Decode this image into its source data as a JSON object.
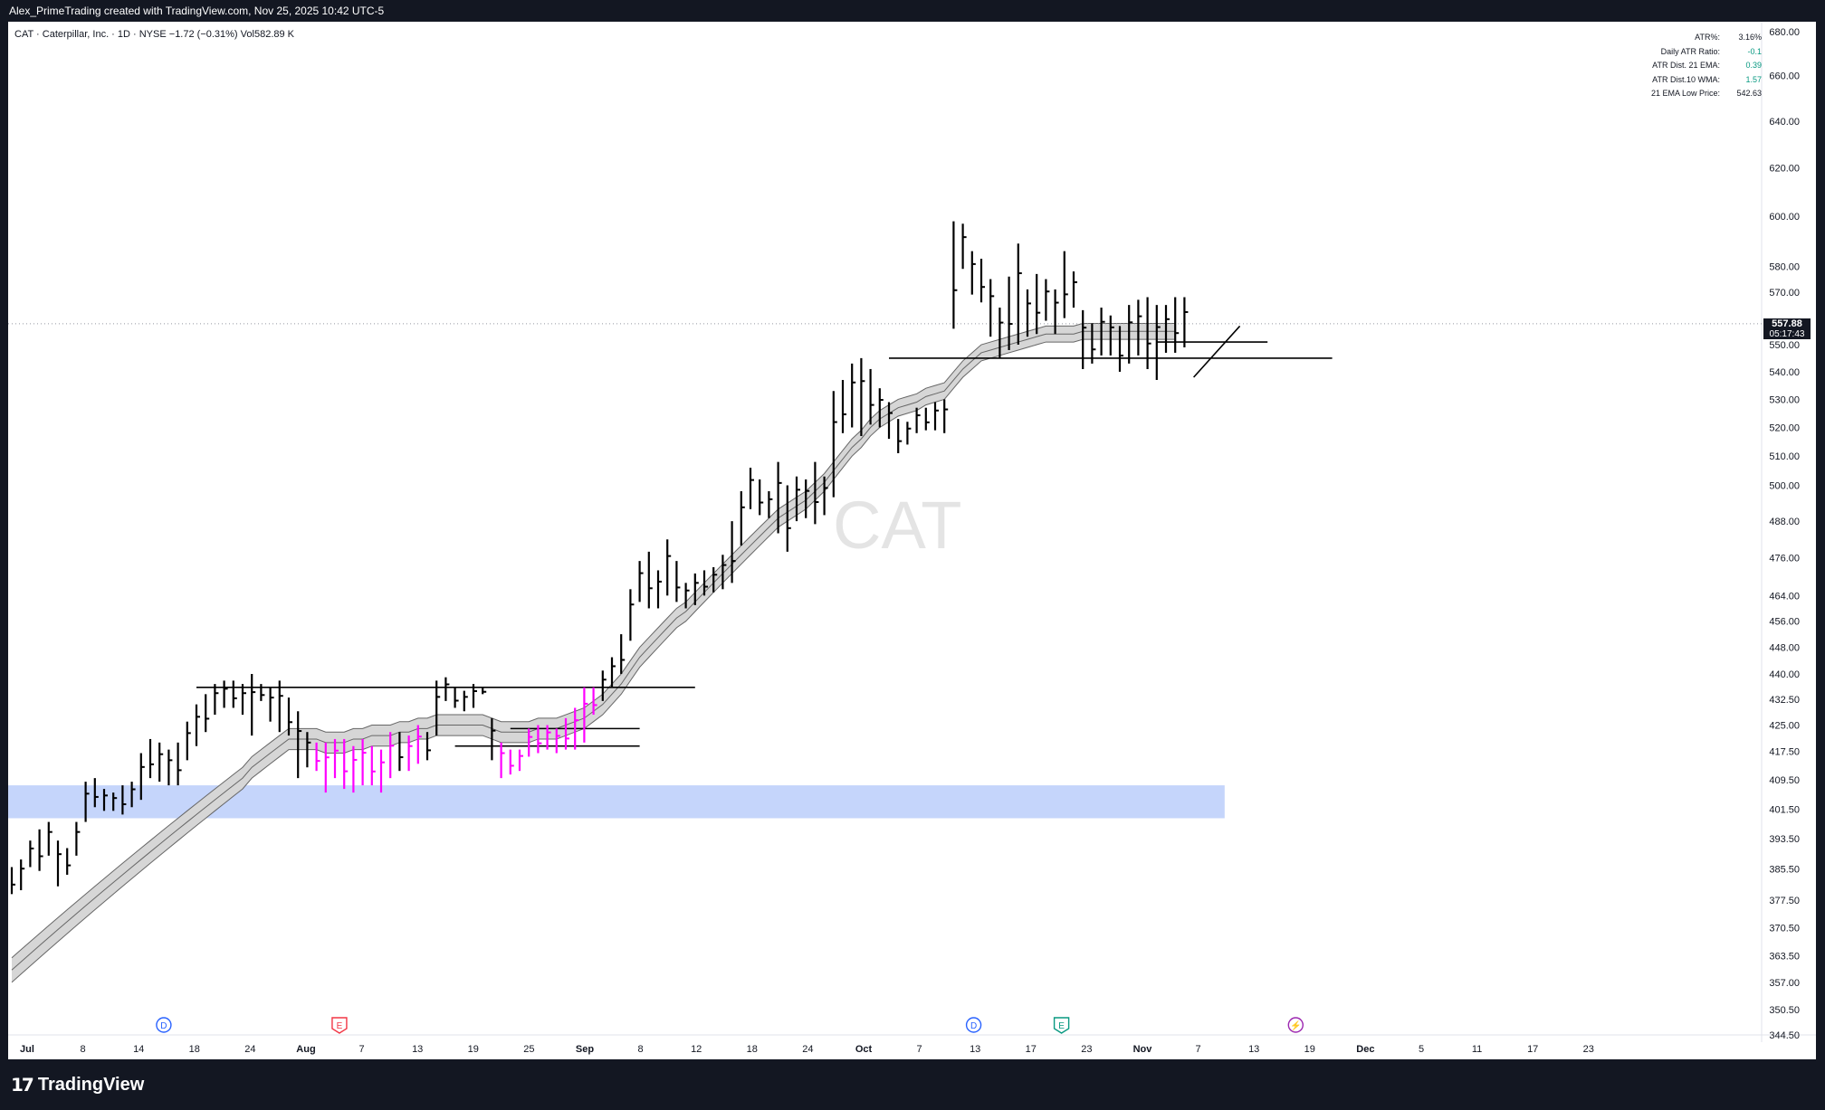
{
  "header": {
    "credit": "Alex_PrimeTrading created with TradingView.com, Nov 25, 2025 10:42 UTC-5"
  },
  "legend": {
    "symbol_line": "CAT · Caterpillar, Inc. · 1D · NYSE",
    "change": "−1.72 (−0.31%)",
    "volume": "Vol582.89 K"
  },
  "watermark": "CAT",
  "indicator_table": [
    {
      "label": "ATR%:",
      "value": "3.16%"
    },
    {
      "label": "Daily ATR Ratio:",
      "value": "-0.1"
    },
    {
      "label": "ATR Dist. 21 EMA:",
      "value": "0.39"
    },
    {
      "label": "ATR Dist.10 WMA:",
      "value": "1.57"
    },
    {
      "label": "21 EMA Low Price:",
      "value": "542.63"
    }
  ],
  "price_tag": {
    "price": "557.88",
    "countdown": "05:17:43"
  },
  "footer": {
    "brand": "TradingView"
  },
  "colors": {
    "bar": "#000000",
    "highlight_bar": "#ff00ff",
    "band_fill": "#d6d6d6",
    "band_edge": "#666666",
    "zone_fill": "#c5d5fb",
    "dividend_marker": "#2962ff",
    "earnings_past_marker": "#f23645",
    "earnings_future_marker": "#089981",
    "split_marker": "#9c27b0",
    "positive_value": "#089981",
    "negative_value": "#f23645"
  },
  "chart_data": {
    "type": "ohlc-bar",
    "symbol": "CAT",
    "timeframe": "1D",
    "y_axis": {
      "scale": "log",
      "ylim": [
        344.5,
        680
      ],
      "tick_labels": [
        "680.00",
        "660.00",
        "640.00",
        "620.00",
        "600.00",
        "580.00",
        "570.00",
        "550.00",
        "540.00",
        "530.00",
        "520.00",
        "510.00",
        "500.00",
        "488.00",
        "476.00",
        "464.00",
        "456.00",
        "448.00",
        "440.00",
        "432.50",
        "425.00",
        "417.50",
        "409.50",
        "401.50",
        "393.50",
        "385.50",
        "377.50",
        "370.50",
        "363.50",
        "357.00",
        "350.50",
        "344.50"
      ]
    },
    "x_axis": {
      "tick_labels": [
        "Jul",
        "8",
        "14",
        "18",
        "24",
        "Aug",
        "7",
        "13",
        "19",
        "25",
        "Sep",
        "8",
        "12",
        "18",
        "24",
        "Oct",
        "7",
        "13",
        "17",
        "23",
        "Nov",
        "7",
        "13",
        "19",
        "Dec",
        "5",
        "11",
        "17",
        "23"
      ]
    },
    "last_price": 557.88,
    "bars": [
      [
        379,
        386
      ],
      [
        380,
        388
      ],
      [
        386,
        393
      ],
      [
        385,
        396
      ],
      [
        389,
        398
      ],
      [
        381,
        393
      ],
      [
        384,
        391
      ],
      [
        389,
        398
      ],
      [
        398,
        409
      ],
      [
        402,
        410
      ],
      [
        401,
        407
      ],
      [
        401,
        406
      ],
      [
        400,
        408
      ],
      [
        402,
        409
      ],
      [
        404,
        417
      ],
      [
        410,
        421
      ],
      [
        409,
        420
      ],
      [
        408,
        418
      ],
      [
        408,
        420
      ],
      [
        415,
        426
      ],
      [
        419,
        431
      ],
      [
        423,
        434
      ],
      [
        428,
        437
      ],
      [
        430,
        438
      ],
      [
        430,
        438
      ],
      [
        428,
        437
      ],
      [
        422,
        440
      ],
      [
        432,
        437
      ],
      [
        426,
        436
      ],
      [
        423,
        438
      ],
      [
        422,
        433
      ],
      [
        410,
        429
      ],
      [
        413,
        423
      ],
      [
        412,
        420
      ],
      [
        406,
        420
      ],
      [
        410,
        421
      ],
      [
        407,
        421
      ],
      [
        406,
        419
      ],
      [
        408,
        421
      ],
      [
        408,
        419
      ],
      [
        406,
        418
      ],
      [
        410,
        423
      ],
      [
        412,
        423
      ],
      [
        412,
        422
      ],
      [
        414,
        425
      ],
      [
        415,
        423
      ],
      [
        422,
        438
      ],
      [
        432,
        439
      ],
      [
        430,
        436
      ],
      [
        429,
        435
      ],
      [
        430,
        437
      ],
      [
        434,
        436
      ],
      [
        415,
        427
      ],
      [
        410,
        420
      ],
      [
        411,
        418
      ],
      [
        412,
        418
      ],
      [
        416,
        424
      ],
      [
        417,
        425
      ],
      [
        418,
        425
      ],
      [
        417,
        424
      ],
      [
        418,
        427
      ],
      [
        418,
        430
      ],
      [
        420,
        436
      ],
      [
        428,
        436
      ],
      [
        432,
        441
      ],
      [
        436,
        445
      ],
      [
        440,
        452
      ],
      [
        450,
        466
      ],
      [
        462,
        475
      ],
      [
        460,
        478
      ],
      [
        460,
        472
      ],
      [
        464,
        482
      ],
      [
        462,
        475
      ],
      [
        460,
        468
      ],
      [
        461,
        471
      ],
      [
        464,
        472
      ],
      [
        465,
        473
      ],
      [
        466,
        477
      ],
      [
        468,
        488
      ],
      [
        480,
        498
      ],
      [
        492,
        506
      ],
      [
        490,
        502
      ],
      [
        489,
        498
      ],
      [
        484,
        508
      ],
      [
        478,
        500
      ],
      [
        488,
        503
      ],
      [
        489,
        502
      ],
      [
        487,
        508
      ],
      [
        490,
        503
      ],
      [
        496,
        533
      ],
      [
        518,
        537
      ],
      [
        520,
        543
      ],
      [
        517,
        545
      ],
      [
        521,
        541
      ],
      [
        520,
        534
      ],
      [
        516,
        529
      ],
      [
        511,
        523
      ],
      [
        514,
        522
      ],
      [
        518,
        527
      ],
      [
        519,
        527
      ],
      [
        519,
        529
      ],
      [
        518,
        530
      ],
      [
        556,
        598
      ],
      [
        579,
        597
      ],
      [
        569,
        586
      ],
      [
        566,
        583
      ],
      [
        553,
        575
      ],
      [
        545,
        564
      ],
      [
        548,
        576
      ],
      [
        550,
        589
      ],
      [
        553,
        571
      ],
      [
        554,
        577
      ],
      [
        559,
        575
      ],
      [
        554,
        571
      ],
      [
        560,
        586
      ],
      [
        564,
        578
      ],
      [
        541,
        563
      ],
      [
        543,
        558
      ],
      [
        546,
        564
      ],
      [
        546,
        561
      ],
      [
        540,
        557
      ],
      [
        543,
        565
      ],
      [
        546,
        567
      ],
      [
        541,
        568
      ],
      [
        537,
        565
      ],
      [
        547,
        565
      ],
      [
        547,
        568
      ],
      [
        549,
        568
      ]
    ],
    "highlight_bar_ranges": [
      [
        33,
        41
      ],
      [
        43,
        44
      ],
      [
        53,
        63
      ]
    ],
    "band": {
      "upper": [
        363,
        365,
        367,
        369,
        371,
        373,
        375,
        377,
        379,
        381,
        383,
        385,
        387,
        389,
        391,
        393,
        395,
        397,
        399,
        401,
        403,
        405,
        407,
        409,
        411,
        413,
        416,
        418,
        420,
        422,
        424,
        424,
        424,
        424,
        423,
        423,
        423,
        424,
        424,
        425,
        425,
        425,
        426,
        426,
        427,
        427,
        428,
        428,
        428,
        428,
        428,
        428,
        427,
        426,
        426,
        426,
        426,
        427,
        427,
        427,
        428,
        429,
        430,
        432,
        434,
        437,
        440,
        444,
        448,
        451,
        454,
        457,
        460,
        462,
        465,
        468,
        471,
        474,
        477,
        480,
        483,
        486,
        489,
        492,
        494,
        496,
        498,
        501,
        504,
        508,
        512,
        516,
        519,
        523,
        526,
        528,
        530,
        531,
        532,
        534,
        535,
        536,
        540,
        544,
        547,
        550,
        551,
        552,
        553,
        554,
        555,
        556,
        557,
        557,
        557,
        557,
        558,
        558,
        558,
        558,
        558,
        558,
        558,
        558,
        558,
        558,
        558
      ],
      "mid": [
        360,
        362,
        364,
        366,
        368,
        370,
        372,
        374,
        376,
        378,
        380,
        382,
        384,
        386,
        388,
        390,
        392,
        394,
        396,
        398,
        400,
        402,
        404,
        406,
        408,
        410,
        413,
        415,
        417,
        419,
        421,
        421,
        421,
        421,
        420,
        420,
        420,
        421,
        421,
        422,
        422,
        422,
        423,
        423,
        424,
        424,
        425,
        425,
        425,
        425,
        425,
        425,
        424,
        423,
        423,
        423,
        423,
        424,
        424,
        424,
        425,
        426,
        427,
        429,
        431,
        434,
        437,
        441,
        445,
        448,
        451,
        454,
        457,
        459,
        462,
        465,
        468,
        471,
        474,
        477,
        480,
        483,
        486,
        489,
        491,
        493,
        495,
        498,
        501,
        505,
        509,
        513,
        516,
        520,
        523,
        525,
        527,
        528,
        529,
        531,
        532,
        533,
        537,
        541,
        544,
        547,
        548,
        549,
        550,
        551,
        552,
        553,
        554,
        554,
        554,
        554,
        555,
        555,
        555,
        555,
        555,
        555,
        555,
        555,
        555,
        555,
        555
      ],
      "lower": [
        357,
        359,
        361,
        363,
        365,
        367,
        369,
        371,
        373,
        375,
        377,
        379,
        381,
        383,
        385,
        387,
        389,
        391,
        393,
        395,
        397,
        399,
        401,
        403,
        405,
        407,
        410,
        412,
        414,
        416,
        418,
        418,
        418,
        418,
        417,
        417,
        417,
        418,
        418,
        419,
        419,
        419,
        420,
        420,
        421,
        421,
        422,
        422,
        422,
        422,
        422,
        422,
        421,
        420,
        420,
        420,
        420,
        421,
        421,
        421,
        422,
        423,
        424,
        426,
        428,
        431,
        434,
        438,
        442,
        445,
        448,
        451,
        454,
        456,
        459,
        462,
        465,
        468,
        471,
        474,
        477,
        480,
        483,
        486,
        488,
        490,
        492,
        495,
        498,
        502,
        506,
        510,
        513,
        517,
        520,
        522,
        524,
        525,
        526,
        528,
        529,
        530,
        534,
        538,
        541,
        544,
        545,
        546,
        547,
        548,
        549,
        550,
        551,
        551,
        551,
        551,
        552,
        552,
        552,
        552,
        552,
        552,
        552,
        552,
        552,
        552,
        552
      ]
    },
    "zones": [
      {
        "from_bar": 0,
        "to_bar": 129,
        "low": 399,
        "high": 408
      }
    ],
    "hlines": [
      {
        "from_bar": 20,
        "to_bar": 74,
        "price": 436
      },
      {
        "from_bar": 48,
        "to_bar": 68,
        "price": 419
      },
      {
        "from_bar": 54,
        "to_bar": 68,
        "price": 424
      },
      {
        "from_bar": 95,
        "to_bar": 143,
        "price": 545
      },
      {
        "from_bar": 124,
        "to_bar": 136,
        "price": 551
      }
    ],
    "diagonal": {
      "from_bar": 128,
      "from_price": 538,
      "to_bar": 133,
      "to_price": 557
    },
    "event_markers": [
      {
        "bar": 14,
        "letter": "D",
        "kind": "dividend"
      },
      {
        "bar": 32,
        "letter": "E",
        "kind": "earnings_past"
      },
      {
        "bar": 97,
        "letter": "D",
        "kind": "dividend"
      },
      {
        "bar": 106,
        "letter": "E",
        "kind": "earnings_future"
      },
      {
        "bar": 130,
        "letter": "⚡",
        "kind": "split"
      }
    ]
  }
}
